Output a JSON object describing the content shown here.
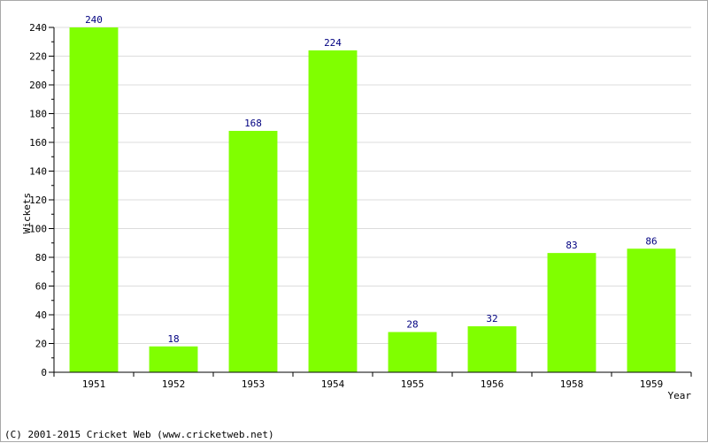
{
  "chart_data": {
    "type": "bar",
    "categories": [
      "1951",
      "1952",
      "1953",
      "1954",
      "1955",
      "1956",
      "1958",
      "1959"
    ],
    "values": [
      240,
      18,
      168,
      224,
      28,
      32,
      83,
      86
    ],
    "title": "",
    "xlabel": "Year",
    "ylabel": "Wickets",
    "ylim": [
      0,
      240
    ],
    "yticks": [
      0,
      20,
      40,
      60,
      80,
      100,
      120,
      140,
      160,
      180,
      200,
      220,
      240
    ],
    "grid": true,
    "legend": "none",
    "colors": {
      "bar": "#80ff00",
      "data_label": "#000080",
      "grid": "#dcdcdc",
      "axis": "#000000"
    }
  },
  "footer": {
    "copyright": "(C) 2001-2015 Cricket Web (www.cricketweb.net)"
  }
}
